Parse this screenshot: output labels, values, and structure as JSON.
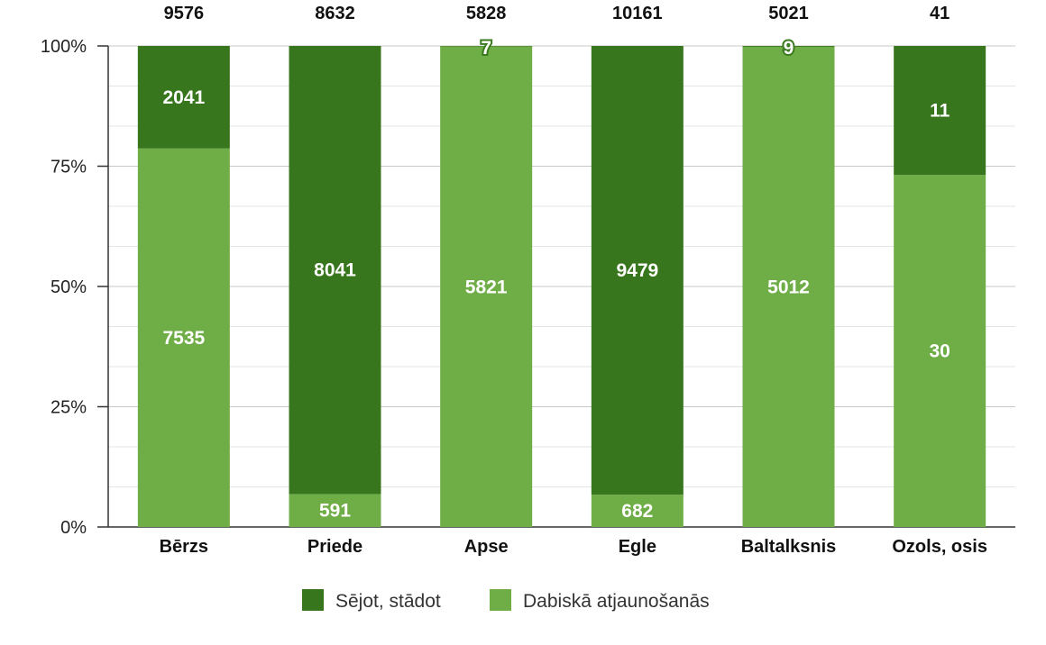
{
  "chart_data": {
    "type": "bar",
    "stacked": true,
    "normalized": true,
    "categories": [
      "Bērzs",
      "Priede",
      "Apse",
      "Egle",
      "Baltalksnis",
      "Ozols, osis"
    ],
    "totals": [
      9576,
      8632,
      5828,
      10161,
      5021,
      41
    ],
    "series": [
      {
        "name": "Dabiskā atjaunošanās",
        "color": "#6fad47",
        "values": [
          7535,
          591,
          5821,
          682,
          5012,
          30
        ]
      },
      {
        "name": "Sējot, stādot",
        "color": "#38761d",
        "values": [
          2041,
          8041,
          7,
          9479,
          9,
          11
        ]
      }
    ],
    "y_ticks": [
      "0%",
      "25%",
      "50%",
      "75%",
      "100%"
    ],
    "ylim": [
      0,
      100
    ],
    "grid": true,
    "legend_position": "bottom",
    "legend": [
      {
        "name": "Sējot, stādot",
        "color": "#38761d"
      },
      {
        "name": "Dabiskā atjaunošanās",
        "color": "#6fad47"
      }
    ]
  }
}
